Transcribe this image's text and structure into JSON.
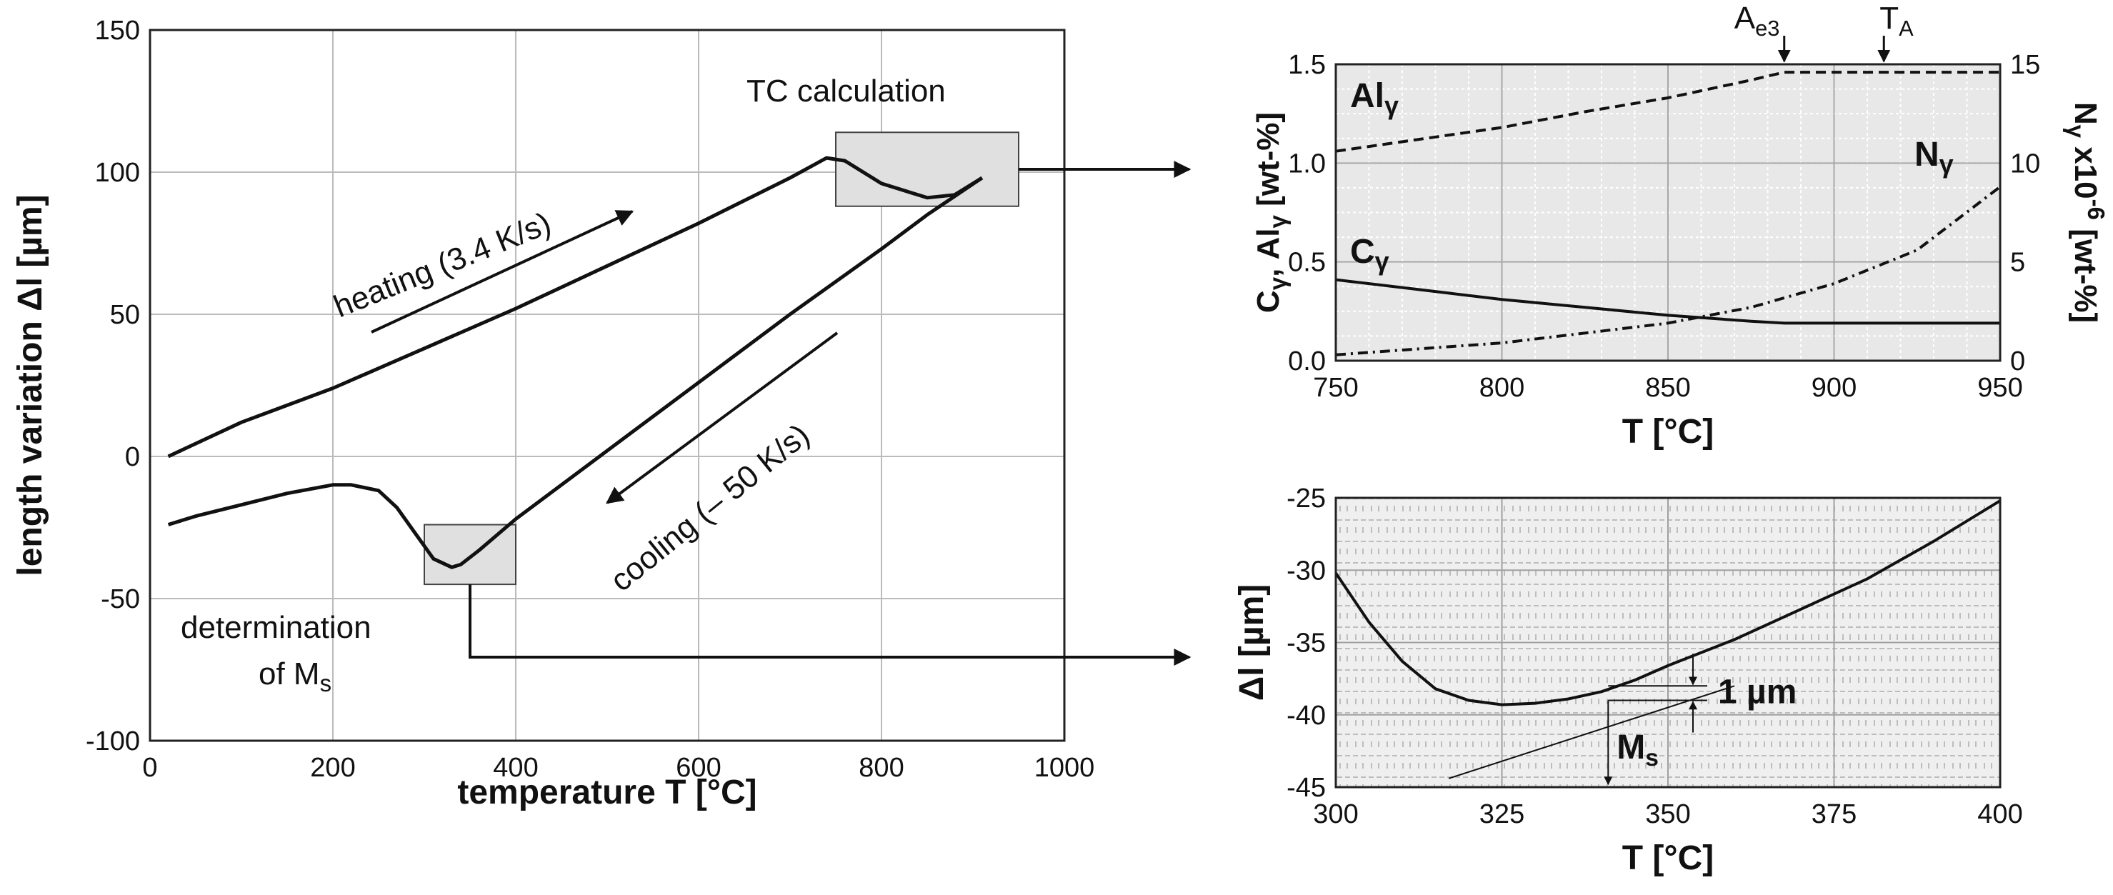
{
  "chart_data": [
    {
      "type": "line",
      "id": "main",
      "xlabel": "temperature T [°C]",
      "ylabel": "length variation Δl  [µm]",
      "xlim": [
        0,
        1000
      ],
      "ylim": [
        -100,
        150
      ],
      "xticks": [
        "0",
        "200",
        "400",
        "600",
        "800",
        "1000"
      ],
      "yticks": [
        "-100",
        "-50",
        "0",
        "50",
        "100",
        "150"
      ],
      "grid": true,
      "series": [
        {
          "x": [
            20,
            100,
            200,
            300,
            400,
            500,
            600,
            700,
            740,
            760,
            800,
            850,
            880,
            910
          ],
          "y": [
            0,
            12,
            24,
            38,
            52,
            67,
            82,
            98,
            105,
            104,
            96,
            91,
            92,
            98
          ]
        },
        {
          "x": [
            910,
            850,
            800,
            700,
            600,
            500,
            400,
            360,
            340,
            330,
            310,
            290,
            270,
            250,
            220,
            200,
            150,
            100,
            50,
            20
          ],
          "y": [
            98,
            85,
            73,
            50,
            26,
            2,
            -22,
            -33,
            -38,
            -39,
            -36,
            -27,
            -18,
            -12,
            -10,
            -10,
            -13,
            -17,
            -21,
            -24
          ]
        }
      ],
      "annotations": {
        "heating": "heating (3.4 K/s)",
        "cooling": "cooling (– 50 K/s)",
        "tc_calc": "TC calculation",
        "determination": "determination",
        "of_ms": "of M",
        "of_ms_sub": "s"
      },
      "boxes": [
        {
          "x": [
            750,
            950
          ],
          "y": [
            88,
            114
          ]
        },
        {
          "x": [
            300,
            400
          ],
          "y": [
            -45,
            -24
          ]
        }
      ]
    },
    {
      "type": "line",
      "id": "top_right",
      "xlabel": "T [°C]",
      "ylabel_left": "C",
      "ylabel_left_parts": [
        "C",
        "γ",
        ", Al",
        "γ",
        "  [wt-%]"
      ],
      "ylabel_right_parts": [
        "N",
        "γ",
        " x10",
        "-6",
        " [wt-%]"
      ],
      "xlim": [
        750,
        950
      ],
      "ylim": [
        0,
        1.5
      ],
      "ylim_right": [
        0,
        15
      ],
      "xticks": [
        "750",
        "800",
        "850",
        "900",
        "950"
      ],
      "yticks": [
        "0.0",
        "0.5",
        "1.0",
        "1.5"
      ],
      "yticks_right": [
        "0",
        "5",
        "10",
        "15"
      ],
      "grid": true,
      "series": [
        {
          "name_parts": [
            "Al",
            "γ"
          ],
          "style": "dashed",
          "x": [
            750,
            775,
            800,
            825,
            850,
            875,
            885,
            900,
            925,
            950
          ],
          "y": [
            1.06,
            1.12,
            1.18,
            1.26,
            1.33,
            1.42,
            1.46,
            1.46,
            1.46,
            1.46
          ]
        },
        {
          "name_parts": [
            "C",
            "γ"
          ],
          "style": "solid",
          "x": [
            750,
            775,
            800,
            825,
            850,
            875,
            885,
            900,
            925,
            950
          ],
          "y": [
            0.41,
            0.36,
            0.31,
            0.27,
            0.23,
            0.2,
            0.19,
            0.19,
            0.19,
            0.19
          ]
        },
        {
          "name_parts": [
            "N",
            "γ"
          ],
          "style": "dashdot",
          "axis": "right",
          "x": [
            750,
            775,
            800,
            825,
            850,
            875,
            900,
            925,
            950
          ],
          "y": [
            0.3,
            0.6,
            0.9,
            1.4,
            1.9,
            2.7,
            3.9,
            5.6,
            8.8
          ]
        }
      ],
      "markers": [
        {
          "label": "A",
          "sub": "e3",
          "x": 885
        },
        {
          "label": "T",
          "sub": "A",
          "x": 915
        }
      ]
    },
    {
      "type": "line",
      "id": "bottom_right",
      "xlabel": "T [°C]",
      "ylabel": "Δl [µm]",
      "xlim": [
        300,
        400
      ],
      "ylim": [
        -45,
        -25
      ],
      "xticks": [
        "300",
        "325",
        "350",
        "375",
        "400"
      ],
      "yticks": [
        "-45",
        "-40",
        "-35",
        "-30",
        "-25"
      ],
      "grid": true,
      "series": [
        {
          "style": "solid",
          "x": [
            300,
            305,
            310,
            315,
            320,
            325,
            330,
            335,
            340,
            345,
            350,
            360,
            370,
            380,
            390,
            400
          ],
          "y": [
            -30.2,
            -33.6,
            -36.3,
            -38.2,
            -39.0,
            -39.3,
            -39.2,
            -38.9,
            -38.4,
            -37.6,
            -36.6,
            -34.8,
            -32.7,
            -30.6,
            -28.0,
            -25.2
          ]
        },
        {
          "style": "tangent",
          "x": [
            317,
            360
          ],
          "y": [
            -44.4,
            -38.0
          ]
        }
      ],
      "annotations": {
        "one_um": "1 µm",
        "ms": "M",
        "ms_sub": "s"
      },
      "ms_x": 341
    }
  ]
}
